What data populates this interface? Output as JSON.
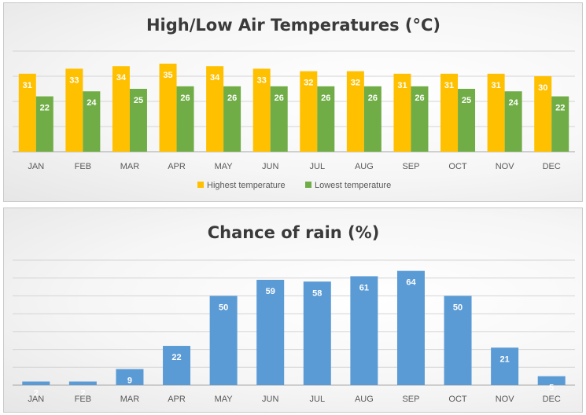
{
  "chart_data": [
    {
      "type": "bar",
      "title": "High/Low Air Temperatures (°C)",
      "categories": [
        "JAN",
        "FEB",
        "MAR",
        "APR",
        "MAY",
        "JUN",
        "JUL",
        "AUG",
        "SEP",
        "OCT",
        "NOV",
        "DEC"
      ],
      "series": [
        {
          "name": "Highest temperature",
          "color": "#FFC000",
          "values": [
            31,
            33,
            34,
            35,
            34,
            33,
            32,
            32,
            31,
            31,
            31,
            30
          ]
        },
        {
          "name": "Lowest temperature",
          "color": "#70AD47",
          "values": [
            22,
            24,
            25,
            26,
            26,
            26,
            26,
            26,
            26,
            25,
            24,
            22
          ]
        }
      ],
      "ylim": [
        0,
        40
      ],
      "grid": true,
      "legend": "bottom-center"
    },
    {
      "type": "bar",
      "title": "Chance of rain (%)",
      "categories": [
        "JAN",
        "FEB",
        "MAR",
        "APR",
        "MAY",
        "JUN",
        "JUL",
        "AUG",
        "SEP",
        "OCT",
        "NOV",
        "DEC"
      ],
      "series": [
        {
          "color": "#5B9BD5",
          "values": [
            2,
            2,
            9,
            22,
            50,
            59,
            58,
            61,
            64,
            50,
            21,
            5
          ]
        }
      ],
      "ylim": [
        0,
        70
      ],
      "grid": true
    }
  ]
}
